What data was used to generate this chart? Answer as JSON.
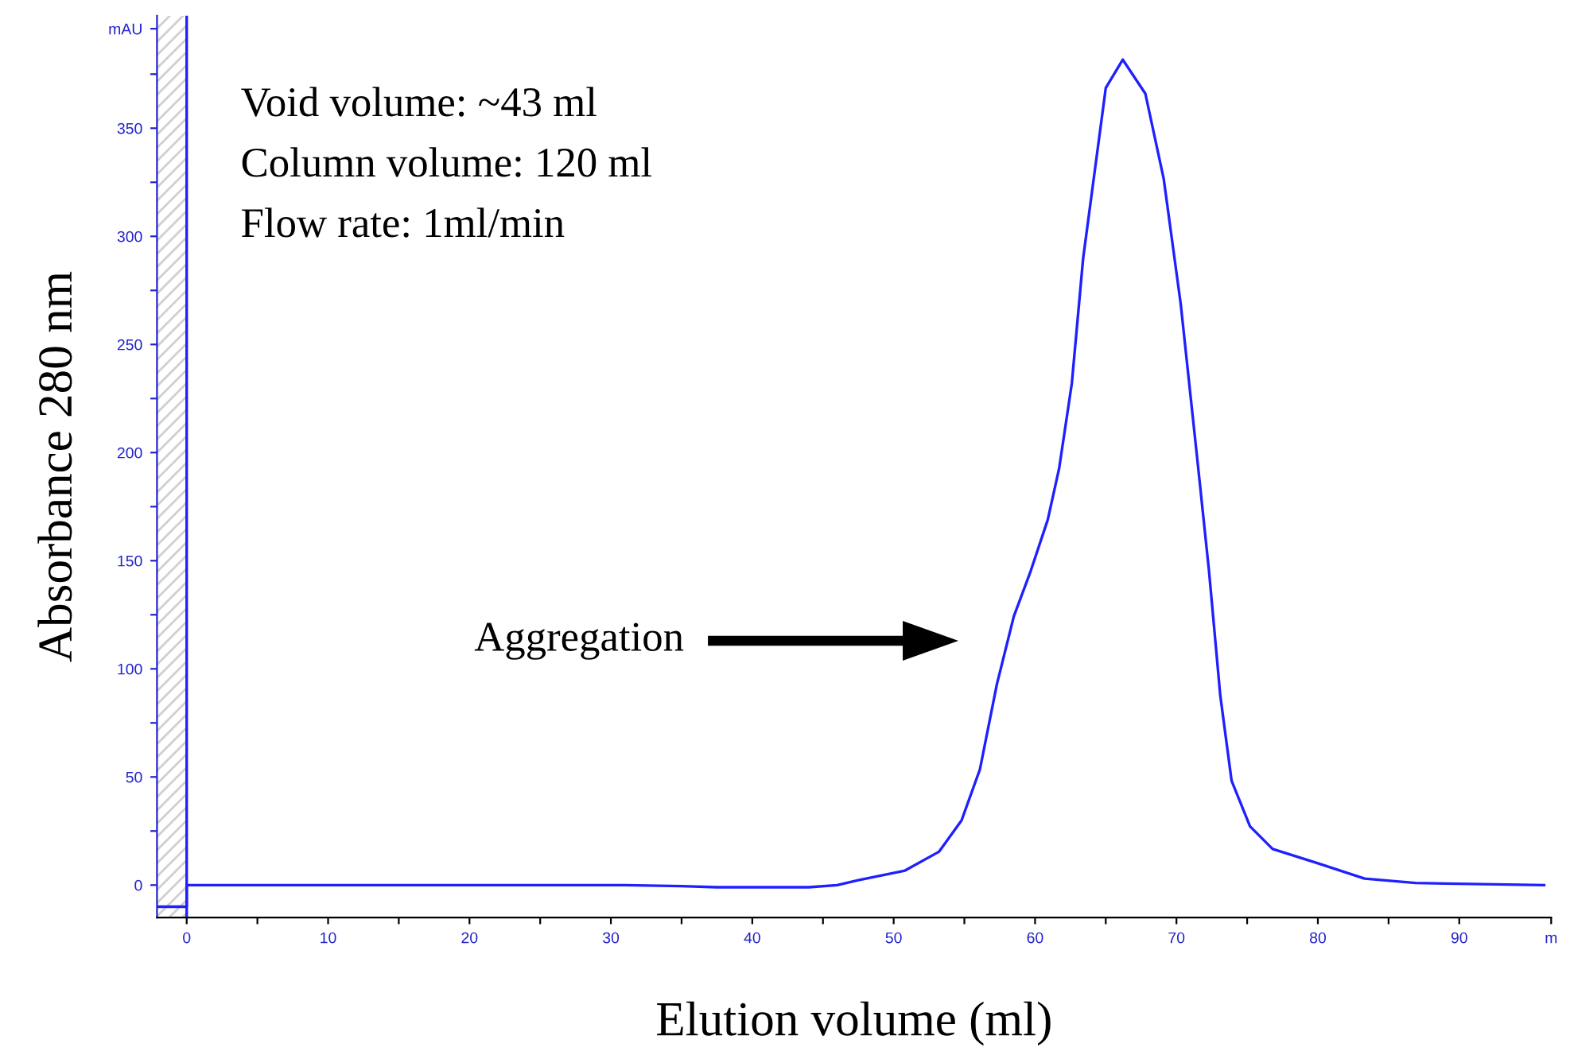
{
  "chart_data": {
    "type": "line",
    "xlabel": "Elution volume (ml)",
    "ylabel": "Absorbance 280 nm",
    "annotations": [
      "Void volume: ~43 ml",
      "Column volume: 120 ml",
      "Flow rate: 1ml/min",
      "Aggregation"
    ],
    "series": [
      {
        "color": "#1f1fff",
        "x": [
          -2,
          0,
          0,
          31,
          35,
          37.5,
          44,
          46,
          47.5,
          50.8,
          53.2,
          54.8,
          56.1,
          57.3,
          58.5,
          59.7,
          60.9,
          61.7,
          62.6,
          63.4,
          64.2,
          65.0,
          66.2,
          67.8,
          69.1,
          70.3,
          71.5,
          72.3,
          73.1,
          73.9,
          75.2,
          76.8,
          80.0,
          83.3,
          86.9,
          89,
          96
        ],
        "values": [
          -10,
          -10,
          0,
          0,
          -0.5,
          -1,
          -1,
          0,
          2.3,
          6.7,
          15.4,
          29.9,
          53.5,
          92.9,
          124.3,
          145.4,
          169,
          192.6,
          232,
          289.8,
          329.2,
          368.6,
          381.7,
          366,
          326.5,
          268.8,
          195.3,
          145.4,
          87.6,
          48.2,
          27.2,
          16.7,
          10.1,
          3,
          1,
          0.7,
          0
        ]
      }
    ],
    "ref_lines": [
      {
        "axis": "x",
        "value": 0,
        "color": "#1f1fff"
      }
    ],
    "bands": [
      {
        "axis": "x",
        "from": -2.1,
        "to": 0,
        "color": "#d0d0d0"
      }
    ],
    "xlim": [
      -2.1,
      96.5
    ],
    "ylim": [
      -15,
      402
    ],
    "xticks": [
      0,
      {
        "value": 5,
        "label": null
      },
      10,
      {
        "value": 15,
        "label": null
      },
      20,
      {
        "value": 25,
        "label": null
      },
      30,
      {
        "value": 35,
        "label": null
      },
      40,
      {
        "value": 45,
        "label": null
      },
      50,
      {
        "value": 55,
        "label": null
      },
      60,
      {
        "value": 65,
        "label": null
      },
      70,
      {
        "value": 75,
        "label": null
      },
      80,
      {
        "value": 85,
        "label": null
      },
      90,
      {
        "value": 96.5,
        "label": "m"
      }
    ],
    "yticks": [
      0,
      {
        "value": 25,
        "label": null
      },
      50,
      {
        "value": 75,
        "label": null
      },
      100,
      {
        "value": 125,
        "label": null
      },
      150,
      {
        "value": 175,
        "label": null
      },
      200,
      {
        "value": 225,
        "label": null
      },
      250,
      {
        "value": 275,
        "label": null
      },
      300,
      {
        "value": 325,
        "label": null
      },
      350,
      {
        "value": 375,
        "label": null
      },
      {
        "value": 396,
        "label": "mAU"
      }
    ],
    "grid": false,
    "legend": false,
    "marker": "none",
    "line_style": "solid"
  }
}
